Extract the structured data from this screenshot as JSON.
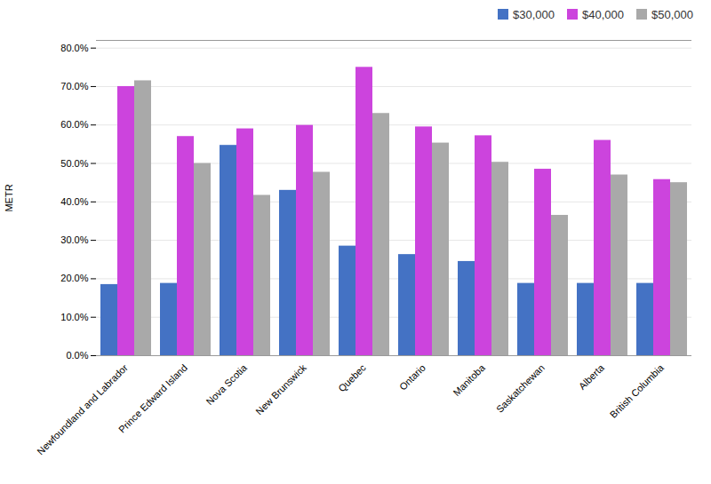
{
  "chart_data": {
    "type": "bar",
    "categories": [
      "Newfoundland and Labrador",
      "Prince Edward Island",
      "Nova Scotia",
      "New Brunswick",
      "Quebec",
      "Ontario",
      "Manitoba",
      "Saskatchewan",
      "Alberta",
      "British Columbia"
    ],
    "series": [
      {
        "name": "$30,000",
        "color": "#4472C4",
        "values": [
          0.185,
          0.188,
          0.547,
          0.43,
          0.285,
          0.263,
          0.245,
          0.188,
          0.188,
          0.188
        ]
      },
      {
        "name": "$40,000",
        "color": "#CC44DD",
        "values": [
          0.7,
          0.57,
          0.59,
          0.599,
          0.75,
          0.595,
          0.572,
          0.485,
          0.56,
          0.458
        ]
      },
      {
        "name": "$50,000",
        "color": "#A9A9A9",
        "values": [
          0.715,
          0.5,
          0.417,
          0.477,
          0.63,
          0.553,
          0.503,
          0.365,
          0.47,
          0.45
        ]
      }
    ],
    "ylabel": "METR",
    "ylim": [
      0.0,
      0.82
    ],
    "yticks": [
      {
        "value": 0.0,
        "label": "0.0%"
      },
      {
        "value": 0.1,
        "label": "10.0%"
      },
      {
        "value": 0.2,
        "label": "20.0%"
      },
      {
        "value": 0.3,
        "label": "30.0%"
      },
      {
        "value": 0.4,
        "label": "40.0%"
      },
      {
        "value": 0.5,
        "label": "50.0%"
      },
      {
        "value": 0.6,
        "label": "60.0%"
      },
      {
        "value": 0.7,
        "label": "70.0%"
      },
      {
        "value": 0.8,
        "label": "80.0%"
      }
    ],
    "grid": true,
    "legend": "upper right"
  }
}
